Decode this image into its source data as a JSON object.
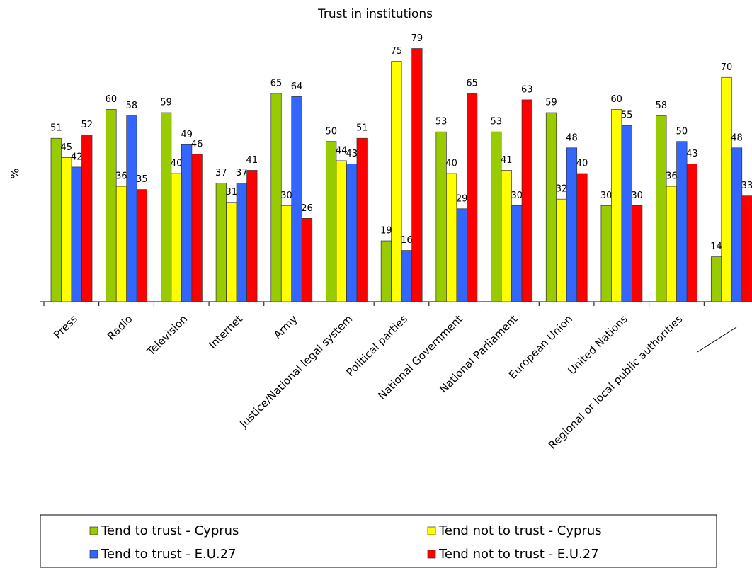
{
  "chart_data": {
    "type": "bar",
    "title": "Trust in institutions",
    "y_label": "%",
    "categories": [
      "Press",
      "Radio",
      "Television",
      "Internet",
      "Army",
      "Justice/National legal system",
      "Political parties",
      "National Government",
      "National Parliament",
      "European Union",
      "United Nations",
      "Regional or local public authorities",
      null
    ],
    "series": [
      {
        "name": "Tend to trust - Cyprus",
        "color": "#99cc00",
        "values": [
          51,
          60,
          59,
          37,
          65,
          50,
          19,
          53,
          53,
          59,
          30,
          58,
          14
        ]
      },
      {
        "name": "Tend not to trust - Cyprus",
        "color": "#ffff00",
        "values": [
          45,
          36,
          40,
          31,
          30,
          44,
          75,
          40,
          41,
          32,
          60,
          36,
          70
        ]
      },
      {
        "name": "Tend to trust - E.U.27",
        "color": "#3366ff",
        "values": [
          42,
          58,
          49,
          37,
          64,
          43,
          16,
          29,
          30,
          48,
          55,
          50,
          48
        ]
      },
      {
        "name": "Tend not to trust - E.U.27",
        "color": "#ff0000",
        "values": [
          52,
          35,
          46,
          41,
          26,
          51,
          79,
          65,
          63,
          40,
          30,
          43,
          33
        ]
      }
    ],
    "ylim": [
      0,
      80
    ]
  }
}
